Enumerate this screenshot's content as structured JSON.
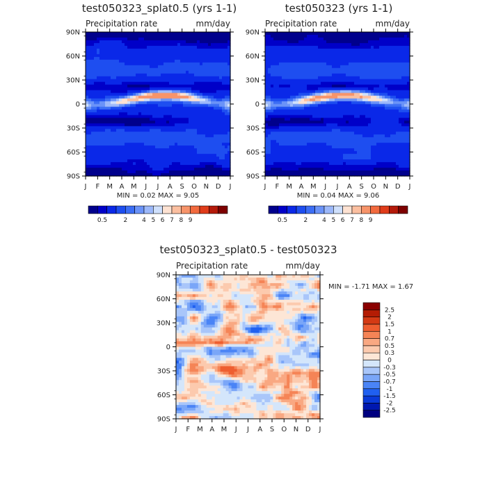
{
  "chart_data": [
    {
      "type": "heatmap",
      "title": "test050323_splat0.5 (yrs 1-1)",
      "subtitle_left": "Precipitation rate",
      "subtitle_right": "mm/day",
      "stats": "MIN =    0.02 MAX =    9.05",
      "min": 0.02,
      "max": 9.05,
      "x_ticks": [
        "J",
        "F",
        "M",
        "A",
        "M",
        "J",
        "J",
        "A",
        "S",
        "O",
        "N",
        "D",
        "J"
      ],
      "y_ticks": [
        "90N",
        "60N",
        "30N",
        "0",
        "30S",
        "60S",
        "90S"
      ],
      "legend_labels": [
        "0.5",
        "2",
        "4",
        "5",
        "6",
        "7",
        "8",
        "9"
      ],
      "levels": [
        0.5,
        1,
        2,
        3,
        4,
        5,
        6,
        7,
        8,
        9
      ],
      "colors": [
        "#00008c",
        "#0000c8",
        "#0a28e8",
        "#1e4ef0",
        "#3c6ef5",
        "#6b93f8",
        "#9cb8fa",
        "#cfe0fc",
        "#fde2d2",
        "#fbbfa0",
        "#f7946a",
        "#f26a3e",
        "#e03c1a",
        "#b41a0a",
        "#7d0000"
      ]
    },
    {
      "type": "heatmap",
      "title": "test050323 (yrs 1-1)",
      "subtitle_left": "Precipitation rate",
      "subtitle_right": "mm/day",
      "stats": "MIN =    0.04 MAX =    9.06",
      "min": 0.04,
      "max": 9.06,
      "x_ticks": [
        "J",
        "F",
        "M",
        "A",
        "M",
        "J",
        "J",
        "A",
        "S",
        "O",
        "N",
        "D",
        "J"
      ],
      "y_ticks": [
        "90N",
        "60N",
        "30N",
        "0",
        "30S",
        "60S",
        "90S"
      ],
      "legend_labels": [
        "0.5",
        "2",
        "4",
        "5",
        "6",
        "7",
        "8",
        "9"
      ],
      "levels": [
        0.5,
        1,
        2,
        3,
        4,
        5,
        6,
        7,
        8,
        9
      ],
      "colors": [
        "#00008c",
        "#0000c8",
        "#0a28e8",
        "#1e4ef0",
        "#3c6ef5",
        "#6b93f8",
        "#9cb8fa",
        "#cfe0fc",
        "#fde2d2",
        "#fbbfa0",
        "#f7946a",
        "#f26a3e",
        "#e03c1a",
        "#b41a0a",
        "#7d0000"
      ]
    },
    {
      "type": "heatmap",
      "title": "test050323_splat0.5 - test050323",
      "subtitle_left": "Precipitation rate",
      "subtitle_right": "mm/day",
      "stats": "MIN =   -1.71 MAX =    1.67",
      "min": -1.71,
      "max": 1.67,
      "x_ticks": [
        "J",
        "F",
        "M",
        "A",
        "M",
        "J",
        "J",
        "A",
        "S",
        "O",
        "N",
        "D",
        "J"
      ],
      "y_ticks": [
        "90N",
        "60N",
        "30N",
        "0",
        "30S",
        "60S",
        "90S"
      ],
      "legend_labels": [
        "2.5",
        "2",
        "1.5",
        "1",
        "0.7",
        "0.5",
        "0.3",
        "0",
        "-0.3",
        "-0.5",
        "-0.7",
        "-1",
        "-1.5",
        "-2",
        "-2.5"
      ],
      "levels": [
        -2.5,
        -2,
        -1.5,
        -1,
        -0.7,
        -0.5,
        -0.3,
        0,
        0.3,
        0.5,
        0.7,
        1,
        1.5,
        2,
        2.5
      ],
      "colors": [
        "#000080",
        "#0018b0",
        "#0a3ad8",
        "#2060f0",
        "#4a84f6",
        "#7aa6f8",
        "#a9c6fa",
        "#d4e6fb",
        "#fde6d6",
        "#fccaae",
        "#f9a882",
        "#f58456",
        "#ee5e30",
        "#d43a14",
        "#b41c04",
        "#8a0000"
      ]
    }
  ]
}
